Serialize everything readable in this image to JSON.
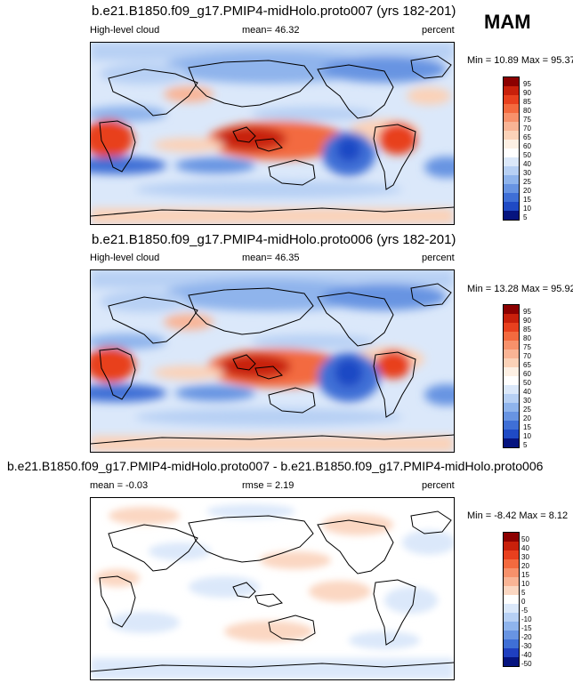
{
  "season": "MAM",
  "panels": [
    {
      "title": "b.e21.B1850.f09_g17.PMIP4-midHolo.proto007 (yrs 182-201)",
      "left_label": "High-level cloud",
      "center_label": "mean=  46.32",
      "right_label": "percent",
      "minmax": "Min =  10.89 Max =  95.37",
      "levels": [
        "95",
        "90",
        "85",
        "80",
        "75",
        "70",
        "65",
        "60",
        "50",
        "40",
        "30",
        "25",
        "20",
        "15",
        "10",
        "5"
      ]
    },
    {
      "title": "b.e21.B1850.f09_g17.PMIP4-midHolo.proto006 (yrs 182-201)",
      "left_label": "High-level cloud",
      "center_label": "mean=  46.35",
      "right_label": "percent",
      "minmax": "Min =  13.28 Max =  95.92",
      "levels": [
        "95",
        "90",
        "85",
        "80",
        "75",
        "70",
        "65",
        "60",
        "50",
        "40",
        "30",
        "25",
        "20",
        "15",
        "10",
        "5"
      ]
    },
    {
      "title": "b.e21.B1850.f09_g17.PMIP4-midHolo.proto007 - b.e21.B1850.f09_g17.PMIP4-midHolo.proto006",
      "left_label": "mean =  -0.03",
      "center_label": "rmse =   2.19",
      "right_label": "percent",
      "minmax": "Min =  -8.42 Max =   8.12",
      "levels": [
        "50",
        "40",
        "30",
        "20",
        "15",
        "10",
        "5",
        "0",
        "-5",
        "-10",
        "-15",
        "-20",
        "-30",
        "-40",
        "-50"
      ]
    }
  ],
  "chart_data": [
    {
      "type": "heatmap",
      "title": "b.e21.B1850.f09_g17.PMIP4-midHolo.proto007 (yrs 182-201)",
      "variable": "High-level cloud",
      "units": "percent",
      "mean": 46.32,
      "min": 10.89,
      "max": 95.37,
      "contour_levels": [
        5,
        10,
        15,
        20,
        25,
        30,
        40,
        50,
        60,
        65,
        70,
        75,
        80,
        85,
        90,
        95
      ]
    },
    {
      "type": "heatmap",
      "title": "b.e21.B1850.f09_g17.PMIP4-midHolo.proto006 (yrs 182-201)",
      "variable": "High-level cloud",
      "units": "percent",
      "mean": 46.35,
      "min": 13.28,
      "max": 95.92,
      "contour_levels": [
        5,
        10,
        15,
        20,
        25,
        30,
        40,
        50,
        60,
        65,
        70,
        75,
        80,
        85,
        90,
        95
      ]
    },
    {
      "type": "heatmap",
      "title": "b.e21.B1850.f09_g17.PMIP4-midHolo.proto007 - b.e21.B1850.f09_g17.PMIP4-midHolo.proto006",
      "units": "percent",
      "mean": -0.03,
      "rmse": 2.19,
      "min": -8.42,
      "max": 8.12,
      "contour_levels": [
        -50,
        -40,
        -30,
        -20,
        -15,
        -10,
        -5,
        0,
        5,
        10,
        15,
        20,
        30,
        40,
        50
      ]
    }
  ],
  "colors": {
    "abs_scale": [
      "#8c0000",
      "#c8200b",
      "#e8401e",
      "#f36a3f",
      "#f7916b",
      "#f9b495",
      "#fbd2b8",
      "#fdf0e4",
      "#dbe8fa",
      "#b7d0f4",
      "#8fb4ec",
      "#6894e2",
      "#3f6fd6",
      "#1f4ac5",
      "#0a2aa8",
      "#06147f"
    ],
    "diff_scale": [
      "#8c0000",
      "#c8200b",
      "#e8401e",
      "#f36a3f",
      "#f7916b",
      "#f9b495",
      "#fbd7c2",
      "#ffffff",
      "#dbe8fa",
      "#b7d0f4",
      "#8fb4ec",
      "#6894e2",
      "#3f6fd6",
      "#1f3fbf",
      "#06147f"
    ]
  }
}
